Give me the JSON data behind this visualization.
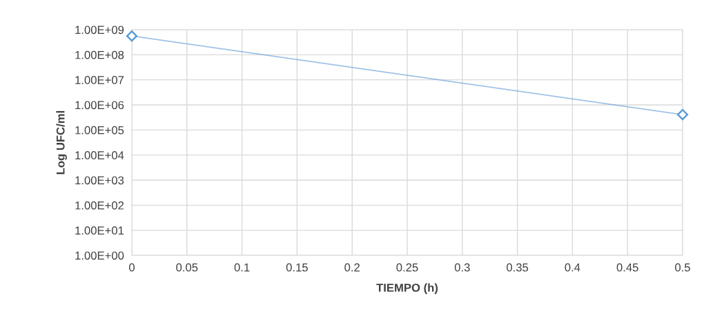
{
  "chart_data": {
    "type": "line",
    "xlabel": "TIEMPO (h)",
    "ylabel": "Log UFC/ml",
    "x": [
      0,
      0.5
    ],
    "series": [
      {
        "color": "#5b9bd5",
        "values": [
          560000000,
          410000
        ]
      }
    ],
    "log": "y",
    "grid": true,
    "marker": "diamond",
    "line_style": "solid",
    "xlim": [
      0,
      0.5
    ],
    "xticks": [
      0,
      0.05,
      0.1,
      0.15,
      0.2,
      0.25,
      0.3,
      0.35,
      0.4,
      0.45,
      0.5
    ],
    "ylim": [
      1,
      1000000000
    ],
    "yticks": [
      {
        "value": 1,
        "label": "1.00E+00"
      },
      {
        "value": 10,
        "label": "1.00E+01"
      },
      {
        "value": 100,
        "label": "1.00E+02"
      },
      {
        "value": 1000,
        "label": "1.00E+03"
      },
      {
        "value": 10000,
        "label": "1.00E+04"
      },
      {
        "value": 100000,
        "label": "1.00E+05"
      },
      {
        "value": 1000000,
        "label": "1.00E+06"
      },
      {
        "value": 10000000,
        "label": "1.00E+07"
      },
      {
        "value": 100000000,
        "label": "1.00E+08"
      },
      {
        "value": 1000000000,
        "label": "1.00E+09"
      }
    ]
  }
}
